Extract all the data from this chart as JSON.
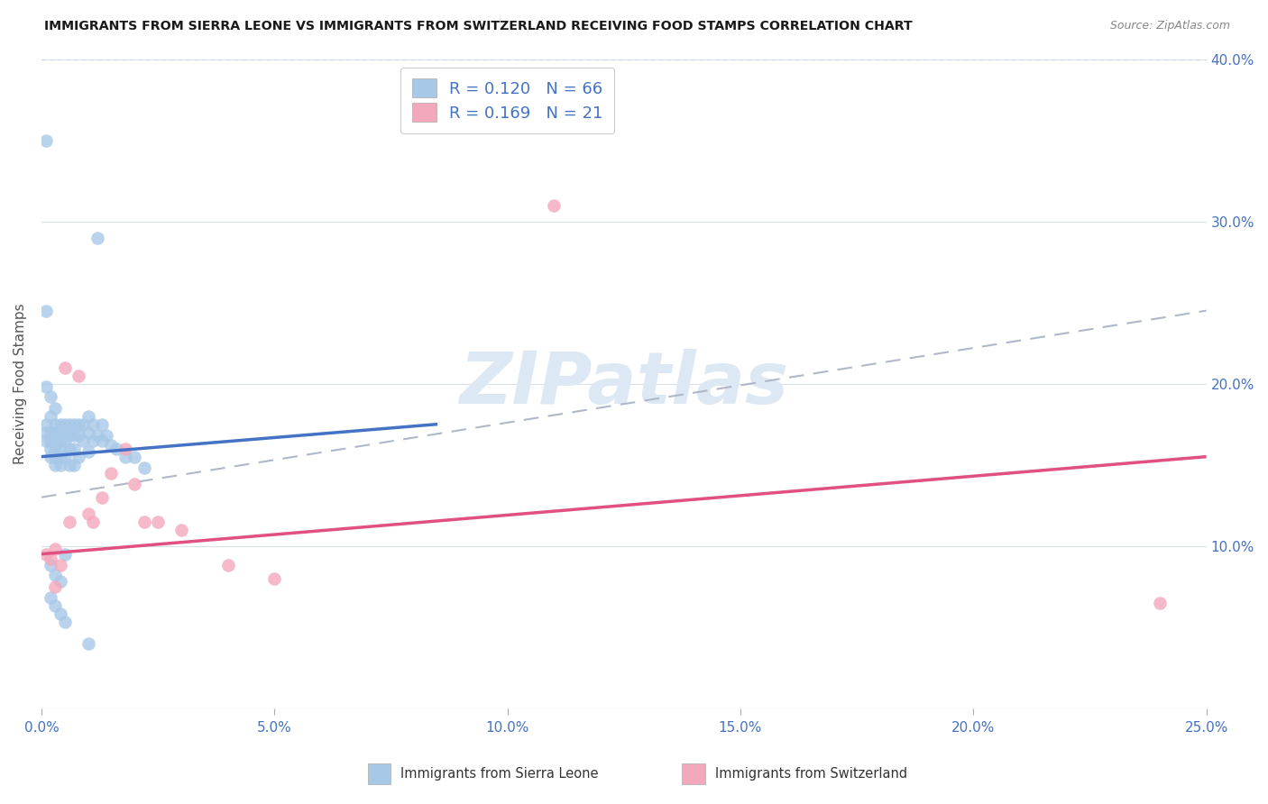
{
  "title": "IMMIGRANTS FROM SIERRA LEONE VS IMMIGRANTS FROM SWITZERLAND RECEIVING FOOD STAMPS CORRELATION CHART",
  "source": "Source: ZipAtlas.com",
  "ylabel_label": "Receiving Food Stamps",
  "xlim": [
    0.0,
    0.25
  ],
  "ylim": [
    0.0,
    0.4
  ],
  "xtick_labels": [
    "0.0%",
    "5.0%",
    "10.0%",
    "15.0%",
    "20.0%",
    "25.0%"
  ],
  "xtick_values": [
    0.0,
    0.05,
    0.1,
    0.15,
    0.2,
    0.25
  ],
  "ytick_labels": [
    "10.0%",
    "20.0%",
    "30.0%",
    "40.0%"
  ],
  "ytick_values": [
    0.1,
    0.2,
    0.3,
    0.4
  ],
  "color_sierra": "#a8c8e8",
  "color_switzerland": "#f4a8bc",
  "color_tick": "#4472c4",
  "line_sierra": "#4472c4",
  "line_switzerland": "#e05080",
  "line_dashed": "#b0b8c8",
  "watermark": "ZIPatlas",
  "background_color": "#ffffff",
  "sierra_x": [
    0.001,
    0.001,
    0.001,
    0.001,
    0.002,
    0.002,
    0.002,
    0.002,
    0.002,
    0.003,
    0.003,
    0.003,
    0.003,
    0.003,
    0.003,
    0.003,
    0.004,
    0.004,
    0.004,
    0.004,
    0.004,
    0.004,
    0.005,
    0.005,
    0.005,
    0.005,
    0.005,
    0.006,
    0.006,
    0.006,
    0.006,
    0.007,
    0.007,
    0.007,
    0.007,
    0.008,
    0.008,
    0.008,
    0.009,
    0.009,
    0.01,
    0.01,
    0.01,
    0.011,
    0.011,
    0.012,
    0.012,
    0.013,
    0.013,
    0.014,
    0.015,
    0.016,
    0.018,
    0.02,
    0.022,
    0.002,
    0.003,
    0.004,
    0.001,
    0.002,
    0.003,
    0.004,
    0.005,
    0.001,
    0.002,
    0.01
  ],
  "sierra_y": [
    0.175,
    0.17,
    0.165,
    0.35,
    0.18,
    0.17,
    0.165,
    0.16,
    0.155,
    0.185,
    0.175,
    0.17,
    0.165,
    0.16,
    0.155,
    0.15,
    0.175,
    0.17,
    0.165,
    0.16,
    0.155,
    0.15,
    0.175,
    0.17,
    0.165,
    0.155,
    0.095,
    0.175,
    0.168,
    0.16,
    0.15,
    0.175,
    0.168,
    0.16,
    0.15,
    0.175,
    0.168,
    0.155,
    0.175,
    0.165,
    0.18,
    0.17,
    0.158,
    0.175,
    0.165,
    0.29,
    0.168,
    0.175,
    0.165,
    0.168,
    0.162,
    0.16,
    0.155,
    0.155,
    0.148,
    0.088,
    0.082,
    0.078,
    0.245,
    0.068,
    0.063,
    0.058,
    0.053,
    0.198,
    0.192,
    0.04
  ],
  "swiss_x": [
    0.001,
    0.002,
    0.003,
    0.003,
    0.004,
    0.005,
    0.006,
    0.008,
    0.01,
    0.011,
    0.013,
    0.015,
    0.018,
    0.02,
    0.022,
    0.025,
    0.03,
    0.04,
    0.05,
    0.11,
    0.24
  ],
  "swiss_y": [
    0.095,
    0.092,
    0.098,
    0.075,
    0.088,
    0.21,
    0.115,
    0.205,
    0.12,
    0.115,
    0.13,
    0.145,
    0.16,
    0.138,
    0.115,
    0.115,
    0.11,
    0.088,
    0.08,
    0.31,
    0.065
  ]
}
